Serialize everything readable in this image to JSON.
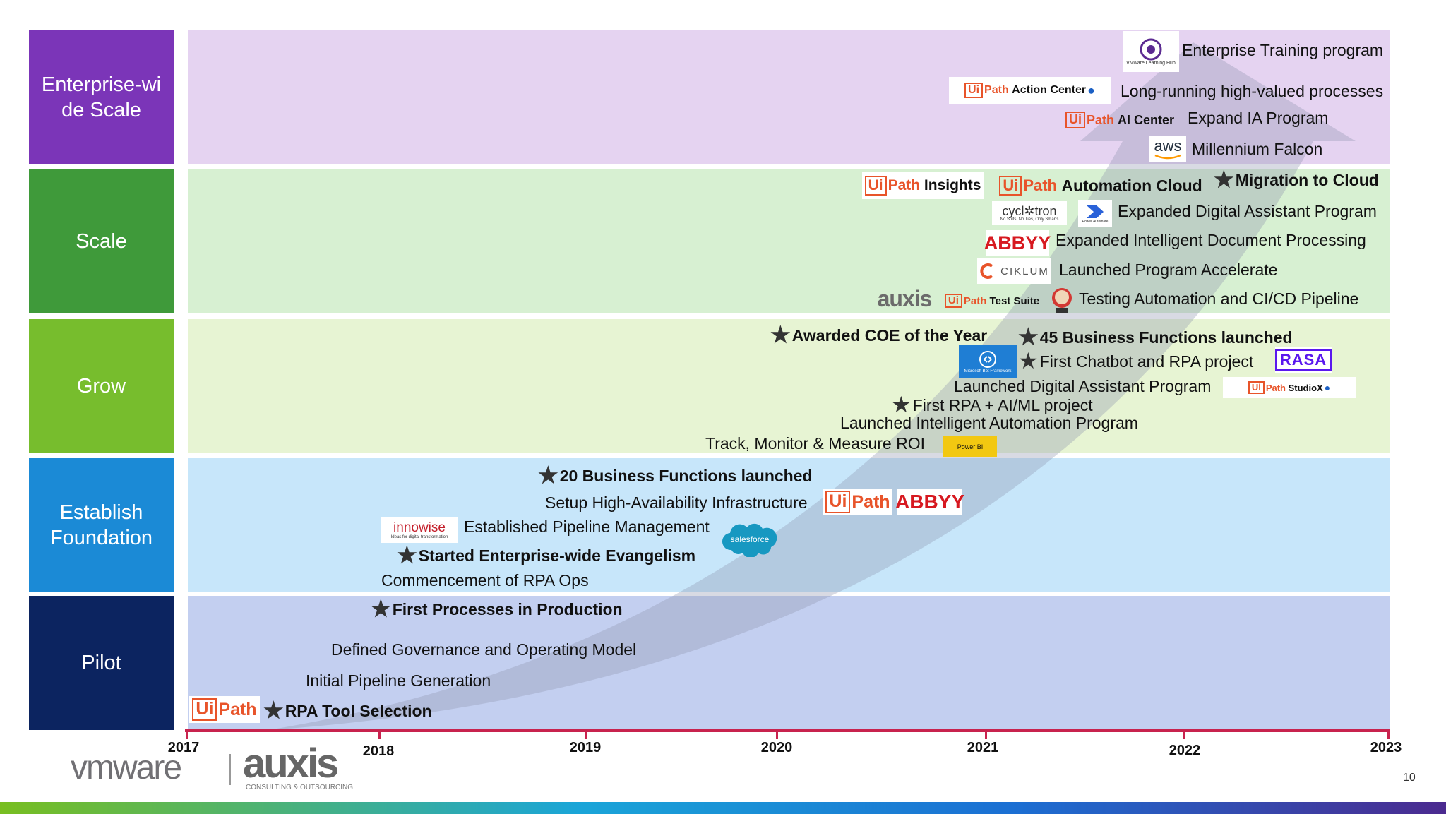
{
  "stages": [
    {
      "label": "Enterprise-wi\nde Scale",
      "color": "#7b35b8",
      "band": "#e5d3f1"
    },
    {
      "label": "Scale",
      "color": "#3f9a3a",
      "band": "#d7f0d2"
    },
    {
      "label": "Grow",
      "color": "#77bd2d",
      "band": "#e7f4d3"
    },
    {
      "label": "Establish\nFoundation",
      "color": "#1b8ad6",
      "band": "#c7e6fa"
    },
    {
      "label": "Pilot",
      "color": "#0c2460",
      "band": "#c3cff0"
    }
  ],
  "events": {
    "enterprise_training": "Enterprise Training program",
    "long_running": "Long-running high-valued processes",
    "expand_ia": "Expand IA Program",
    "millennium": "Millennium Falcon",
    "migration": "Migration to Cloud",
    "expanded_da": "Expanded Digital Assistant Program",
    "expanded_idp": "Expanded Intelligent Document Processing",
    "accelerate": "Launched Program Accelerate",
    "testing": "Testing Automation and CI/CD Pipeline",
    "coe": "Awarded COE of the Year",
    "bf45": "45 Business Functions launched",
    "chatbot": "First Chatbot and RPA project",
    "launched_da": "Launched Digital Assistant Program",
    "first_aiml": "First RPA + AI/ML project",
    "launched_ia": "Launched Intelligent Automation Program",
    "track": "Track, Monitor & Measure ROI",
    "bf20": "20 Business Functions launched",
    "setup_ha": "Setup High-Availability Infrastructure",
    "pipeline_mgmt": "Established Pipeline Management",
    "evangelism": "Started Enterprise-wide Evangelism",
    "rpa_ops": "Commencement of RPA Ops",
    "first_processes": "First Processes in Production",
    "governance": "Defined Governance and Operating Model",
    "initial_pipeline": "Initial Pipeline Generation",
    "tool_selection": "RPA Tool Selection"
  },
  "logos": {
    "vmware_hub": "VMware Learning Hub",
    "ui": "Ui",
    "path": "Path",
    "action_center": "Action Center",
    "ai_center": "AI Center",
    "aws": "aws",
    "insights": "Insights",
    "automation_cloud": "Automation Cloud",
    "cyclotron": "cycl✲tron",
    "cyclotron_tag": "No Suits, No Ties, Only Smarts",
    "power_automate": "Power Automate",
    "abbyy": "ABBYY",
    "ciklum": "CIKLUM",
    "auxis": "auxis",
    "test_suite": "Test Suite",
    "bot_framework": "Microsoft Bot Framework",
    "rasa": "RASA",
    "studiox": "StudioX",
    "power_bi": "Power BI",
    "innowise": "innowise",
    "innowise_tag": "Ideas for digital transformation",
    "salesforce": "salesforce",
    "vmware": "vmware",
    "auxis_footer": "auxis",
    "auxis_tag": "CONSULTING & OUTSOURCING"
  },
  "axis": {
    "years": [
      "2017",
      "2018",
      "2019",
      "2020",
      "2021",
      "2022",
      "2023"
    ],
    "color": "#c8234e"
  },
  "page_number": "10"
}
